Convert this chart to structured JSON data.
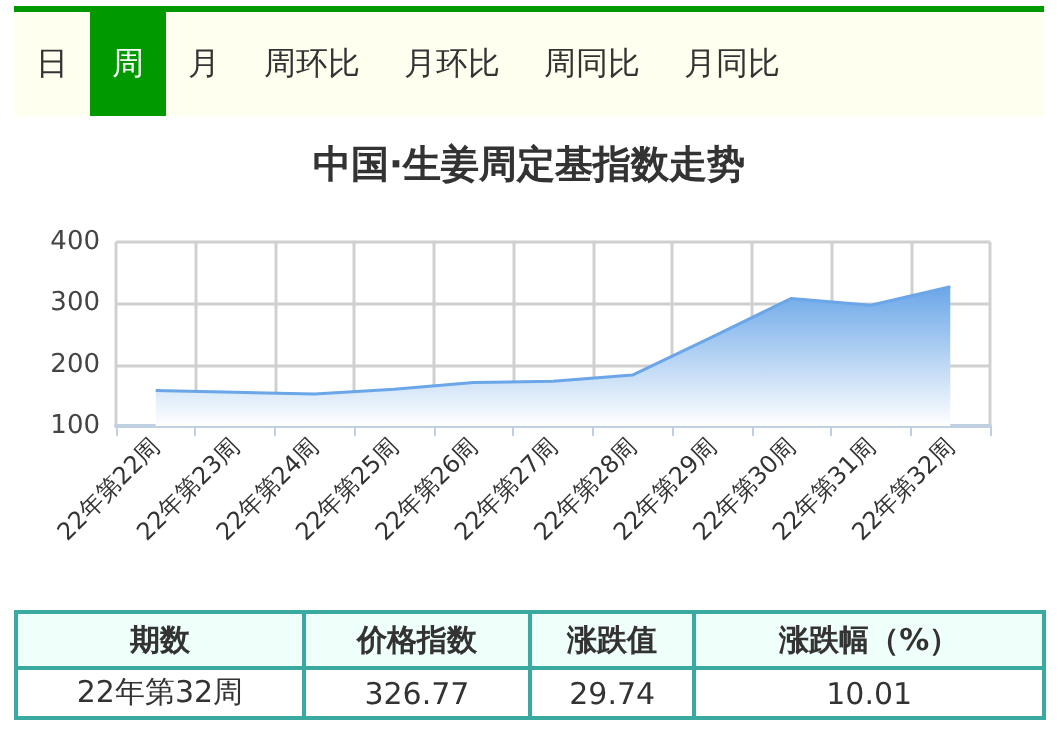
{
  "chart_data": {
    "type": "area",
    "title": "中国·生姜周定基指数走势",
    "categories": [
      "22年第22周",
      "22年第23周",
      "22年第24周",
      "22年第25周",
      "22年第26周",
      "22年第27周",
      "22年第28周",
      "22年第29周",
      "22年第30周",
      "22年第31周",
      "22年第32周"
    ],
    "series": [
      {
        "color": "#6aa6e8",
        "values": [
          158,
          155,
          152,
          160,
          171,
          173,
          183,
          245,
          308,
          297,
          327
        ]
      }
    ],
    "ylim": [
      100,
      400
    ],
    "yticks": [
      100,
      200,
      300,
      400
    ],
    "grid": true,
    "marker": "none",
    "line_style": "solid",
    "annotations": [
      "日",
      "周",
      "月",
      "周环比",
      "月环比",
      "周同比",
      "月同比",
      "期数",
      "价格指数",
      "涨跌值",
      "涨跌幅（%）",
      "22年第32周",
      "326.77",
      "29.74",
      "10.01"
    ]
  }
}
